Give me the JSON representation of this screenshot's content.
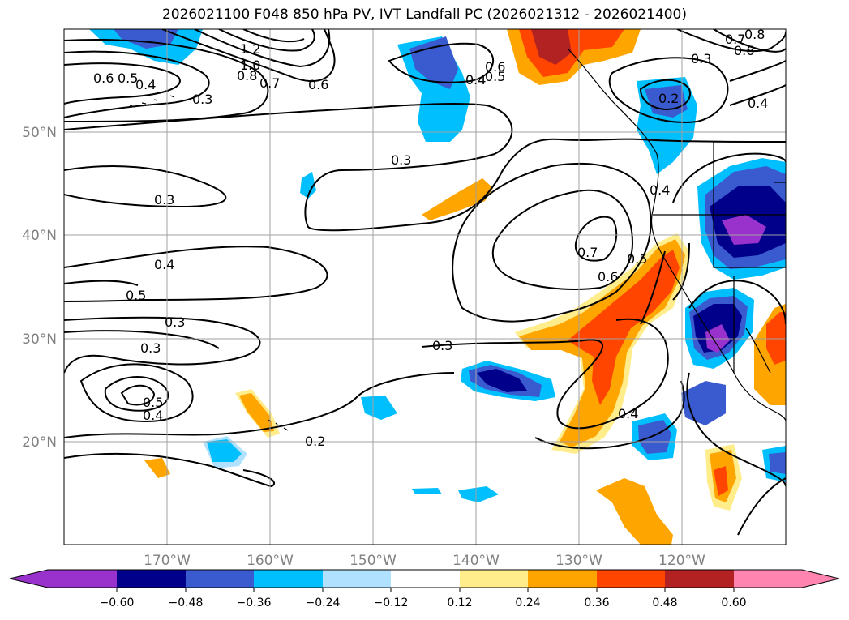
{
  "title": "2026021100 F048 850 hPa PV, IVT Landfall PC (2026021312 - 2026021400)",
  "lon_ticks": [
    "170°W",
    "160°W",
    "150°W",
    "140°W",
    "130°W",
    "120°W"
  ],
  "lat_ticks": [
    "50°N",
    "40°N",
    "30°N",
    "20°N"
  ],
  "map_extent": {
    "lon_min": -180,
    "lon_max": -110,
    "lat_min": 10,
    "lat_max": 60
  },
  "colorbar": {
    "ticks": [
      "−0.60",
      "−0.48",
      "−0.36",
      "−0.24",
      "−0.12",
      "0.12",
      "0.24",
      "0.36",
      "0.48",
      "0.60"
    ],
    "colors": [
      "#9932cc",
      "#00008b",
      "#3a5bd0",
      "#00bfff",
      "#b0e2ff",
      "#ffffff",
      "#ffec8b",
      "#ffa500",
      "#ff4500",
      "#b22222",
      "#ff85b0"
    ]
  },
  "contour_labels": [
    "1.2",
    "1.0",
    "0.8",
    "0.7",
    "0.6",
    "0.6",
    "0.5",
    "0.4",
    "0.3",
    "0.6",
    "0.5",
    "0.4",
    "0.7",
    "0.8",
    "0.6",
    "0.3",
    "0.2",
    "0.4",
    "0.3",
    "0.3",
    "0.4",
    "0.5",
    "0.3",
    "0.3",
    "0.5",
    "0.4",
    "0.2",
    "0.7",
    "0.6",
    "0.5",
    "0.4",
    "0.3",
    "0.4"
  ]
}
